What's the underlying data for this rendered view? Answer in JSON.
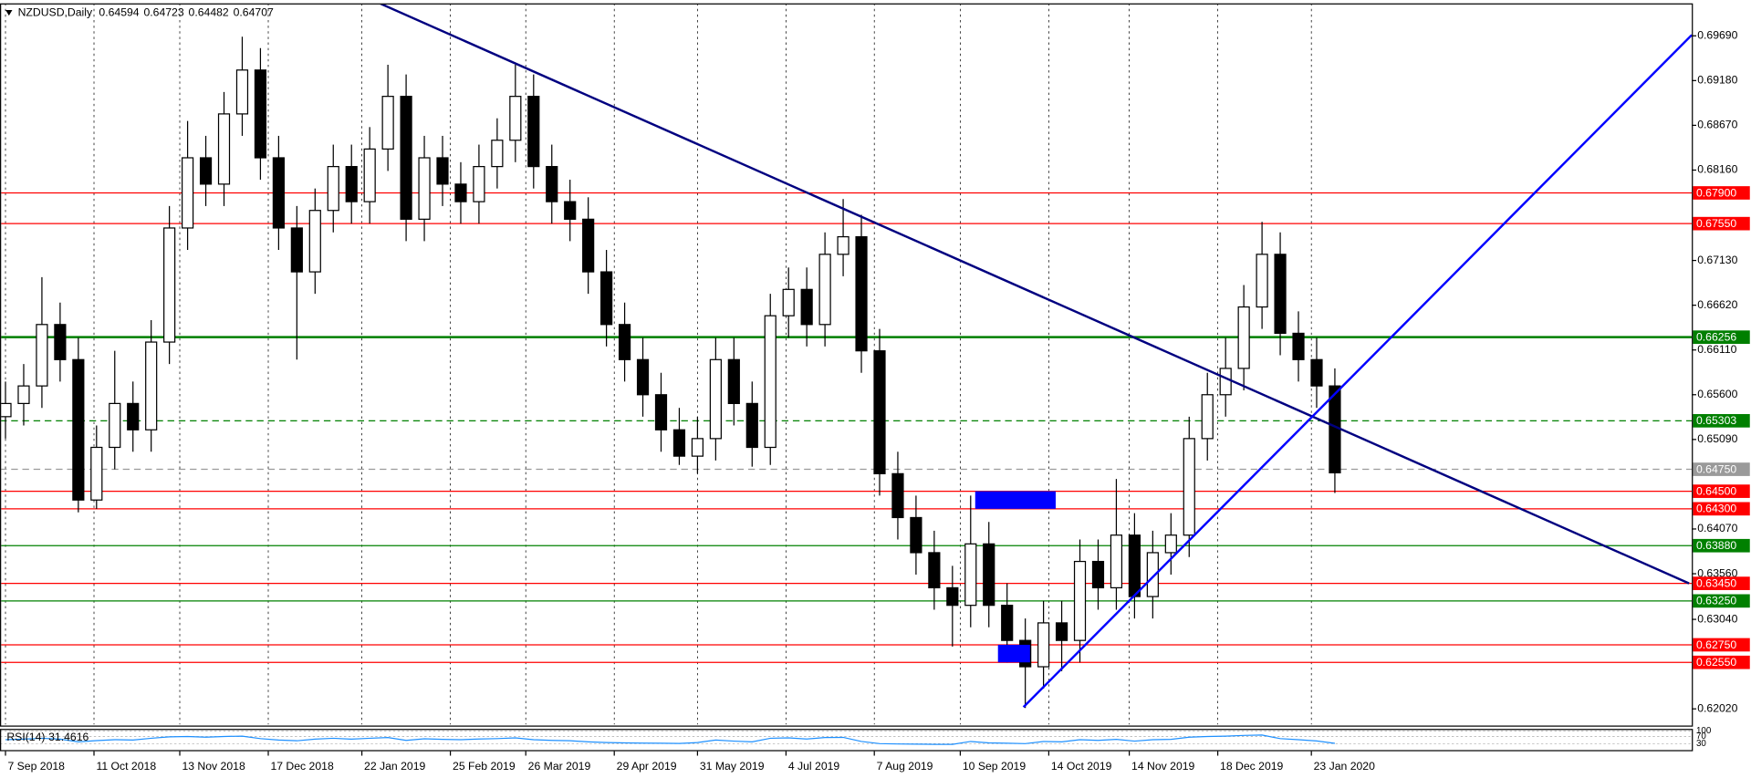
{
  "chart_data": {
    "type": "candlestick",
    "title": "NZDUSD,Daily",
    "header_values": [
      0.64594,
      0.64723,
      0.64482,
      0.64707
    ],
    "bull_color": "#ffffff",
    "bear_color": "#000000",
    "outline_color": "#000000",
    "ohlc": [
      [
        0.6535,
        0.6575,
        0.651,
        0.655
      ],
      [
        0.655,
        0.6595,
        0.6525,
        0.657
      ],
      [
        0.657,
        0.6694,
        0.6545,
        0.664
      ],
      [
        0.664,
        0.6665,
        0.6575,
        0.66
      ],
      [
        0.66,
        0.6625,
        0.6426,
        0.644
      ],
      [
        0.644,
        0.6525,
        0.643,
        0.65
      ],
      [
        0.65,
        0.661,
        0.6475,
        0.655
      ],
      [
        0.655,
        0.6575,
        0.6495,
        0.652
      ],
      [
        0.652,
        0.6645,
        0.6495,
        0.662
      ],
      [
        0.662,
        0.6775,
        0.6595,
        0.675
      ],
      [
        0.675,
        0.6872,
        0.6725,
        0.683
      ],
      [
        0.683,
        0.6855,
        0.6775,
        0.68
      ],
      [
        0.68,
        0.6905,
        0.6775,
        0.688
      ],
      [
        0.688,
        0.6968,
        0.6855,
        0.693
      ],
      [
        0.693,
        0.6955,
        0.6805,
        0.683
      ],
      [
        0.683,
        0.6855,
        0.6725,
        0.675
      ],
      [
        0.675,
        0.6775,
        0.66,
        0.67
      ],
      [
        0.67,
        0.6795,
        0.6675,
        0.677
      ],
      [
        0.677,
        0.6845,
        0.6745,
        0.682
      ],
      [
        0.682,
        0.6845,
        0.6755,
        0.678
      ],
      [
        0.678,
        0.6865,
        0.6755,
        0.684
      ],
      [
        0.684,
        0.6936,
        0.6815,
        0.69
      ],
      [
        0.69,
        0.6925,
        0.6735,
        0.676
      ],
      [
        0.676,
        0.6855,
        0.6735,
        0.683
      ],
      [
        0.683,
        0.6855,
        0.6775,
        0.68
      ],
      [
        0.68,
        0.6825,
        0.6755,
        0.678
      ],
      [
        0.678,
        0.6845,
        0.6755,
        0.682
      ],
      [
        0.682,
        0.6875,
        0.6795,
        0.685
      ],
      [
        0.685,
        0.6936,
        0.6825,
        0.69
      ],
      [
        0.69,
        0.6925,
        0.6795,
        0.682
      ],
      [
        0.682,
        0.6845,
        0.6755,
        0.678
      ],
      [
        0.678,
        0.6805,
        0.6735,
        0.676
      ],
      [
        0.676,
        0.6785,
        0.6675,
        0.67
      ],
      [
        0.67,
        0.6725,
        0.6615,
        0.664
      ],
      [
        0.664,
        0.6665,
        0.6575,
        0.66
      ],
      [
        0.66,
        0.6625,
        0.6535,
        0.656
      ],
      [
        0.656,
        0.6585,
        0.6495,
        0.652
      ],
      [
        0.652,
        0.6545,
        0.648,
        0.649
      ],
      [
        0.649,
        0.6535,
        0.647,
        0.651
      ],
      [
        0.651,
        0.6625,
        0.6485,
        0.66
      ],
      [
        0.66,
        0.6625,
        0.6525,
        0.655
      ],
      [
        0.655,
        0.6575,
        0.6478,
        0.65
      ],
      [
        0.65,
        0.6675,
        0.648,
        0.665
      ],
      [
        0.665,
        0.6705,
        0.6625,
        0.668
      ],
      [
        0.668,
        0.6705,
        0.6615,
        0.664
      ],
      [
        0.664,
        0.6745,
        0.6615,
        0.672
      ],
      [
        0.672,
        0.6783,
        0.6695,
        0.674
      ],
      [
        0.674,
        0.6765,
        0.6585,
        0.661
      ],
      [
        0.661,
        0.6635,
        0.6445,
        0.647
      ],
      [
        0.647,
        0.6495,
        0.6395,
        0.642
      ],
      [
        0.642,
        0.6445,
        0.6355,
        0.638
      ],
      [
        0.638,
        0.6405,
        0.6315,
        0.634
      ],
      [
        0.634,
        0.6365,
        0.6273,
        0.632
      ],
      [
        0.632,
        0.6445,
        0.6295,
        0.639
      ],
      [
        0.639,
        0.6415,
        0.6295,
        0.632
      ],
      [
        0.632,
        0.6345,
        0.6255,
        0.628
      ],
      [
        0.628,
        0.6305,
        0.6203,
        0.625
      ],
      [
        0.625,
        0.6325,
        0.6225,
        0.63
      ],
      [
        0.63,
        0.6325,
        0.6245,
        0.628
      ],
      [
        0.628,
        0.6395,
        0.6255,
        0.637
      ],
      [
        0.637,
        0.6395,
        0.6315,
        0.634
      ],
      [
        0.634,
        0.6464,
        0.6315,
        0.64
      ],
      [
        0.64,
        0.6425,
        0.6305,
        0.633
      ],
      [
        0.633,
        0.6405,
        0.6305,
        0.638
      ],
      [
        0.638,
        0.6425,
        0.6355,
        0.64
      ],
      [
        0.64,
        0.6535,
        0.6375,
        0.651
      ],
      [
        0.651,
        0.6585,
        0.6485,
        0.656
      ],
      [
        0.656,
        0.6625,
        0.6535,
        0.659
      ],
      [
        0.659,
        0.6685,
        0.6565,
        0.666
      ],
      [
        0.666,
        0.6757,
        0.6635,
        0.672
      ],
      [
        0.672,
        0.6745,
        0.6605,
        0.663
      ],
      [
        0.663,
        0.6655,
        0.6575,
        0.66
      ],
      [
        0.66,
        0.6625,
        0.6545,
        0.657
      ],
      [
        0.657,
        0.659,
        0.6448,
        0.6471
      ]
    ],
    "xlim": [
      -0.3,
      92.6
    ],
    "xticks": [
      {
        "value": 0,
        "label": "7 Sep 2018"
      },
      {
        "value": 4.86,
        "label": "11 Oct 2018"
      },
      {
        "value": 9.57,
        "label": "13 Nov 2018"
      },
      {
        "value": 14.43,
        "label": "17 Dec 2018"
      },
      {
        "value": 19.57,
        "label": "22 Jan 2019"
      },
      {
        "value": 24.43,
        "label": "25 Feb 2019"
      },
      {
        "value": 28.57,
        "label": "26 Mar 2019"
      },
      {
        "value": 33.43,
        "label": "29 Apr 2019"
      },
      {
        "value": 38,
        "label": "31 May 2019"
      },
      {
        "value": 42.86,
        "label": "4 Jul 2019"
      },
      {
        "value": 47.71,
        "label": "7 Aug 2019"
      },
      {
        "value": 52.43,
        "label": "10 Sep 2019"
      },
      {
        "value": 57.29,
        "label": "14 Oct 2019"
      },
      {
        "value": 61.71,
        "label": "14 Nov 2019"
      },
      {
        "value": 66.57,
        "label": "18 Dec 2019"
      },
      {
        "value": 71.71,
        "label": "23 Jan 2020"
      }
    ],
    "xgrid": true,
    "ylim": [
      0.6183,
      0.7006
    ],
    "yticks": [
      {
        "value": 0.6969,
        "label": "0.69690"
      },
      {
        "value": 0.6918,
        "label": "0.69180"
      },
      {
        "value": 0.6867,
        "label": "0.68670"
      },
      {
        "value": 0.6816,
        "label": "0.68160"
      },
      {
        "value": 0.6713,
        "label": "0.67130"
      },
      {
        "value": 0.6662,
        "label": "0.66620"
      },
      {
        "value": 0.6611,
        "label": "0.66110"
      },
      {
        "value": 0.656,
        "label": "0.65600"
      },
      {
        "value": 0.6509,
        "label": "0.65090"
      },
      {
        "value": 0.6407,
        "label": "0.64070"
      },
      {
        "value": 0.6356,
        "label": "0.63560"
      },
      {
        "value": 0.6304,
        "label": "0.63040"
      },
      {
        "value": 0.6202,
        "label": "0.62020"
      }
    ],
    "levels": [
      {
        "price": {
          "value": 0.679,
          "label": "0.67900"
        },
        "color": "#ff0000",
        "style": "solid"
      },
      {
        "price": {
          "value": 0.6755,
          "label": "0.67550"
        },
        "color": "#ff0000",
        "style": "solid"
      },
      {
        "price": 0.66256,
        "color": "#007f00",
        "style": "thick"
      },
      {
        "price": 0.65303,
        "color": "#008000",
        "style": "dashed"
      },
      {
        "price": {
          "value": 0.6475,
          "label": "0.64750"
        },
        "color": "#9a9a9a",
        "style": "dashed"
      },
      {
        "price": {
          "value": 0.645,
          "label": "0.64500"
        },
        "color": "#ff0000",
        "style": "solid"
      },
      {
        "price": {
          "value": 0.643,
          "label": "0.64300"
        },
        "color": "#ff0000",
        "style": "solid"
      },
      {
        "price": {
          "value": 0.6388,
          "label": "0.63880"
        },
        "color": "#008000",
        "style": "solid"
      },
      {
        "price": {
          "value": 0.6345,
          "label": "0.63450"
        },
        "color": "#ff0000",
        "style": "solid"
      },
      {
        "price": {
          "value": 0.6325,
          "label": "0.63250"
        },
        "color": "#008000",
        "style": "solid"
      },
      {
        "price": {
          "value": 0.6275,
          "label": "0.62750"
        },
        "color": "#ff0000",
        "style": "solid"
      },
      {
        "price": {
          "value": 0.6255,
          "label": "0.62550"
        },
        "color": "#ff0000",
        "style": "solid"
      }
    ],
    "trendlines": [
      {
        "x": [
          20.55,
          92.45
        ],
        "y": [
          0.7006,
          0.6345
        ],
        "color": "#000080"
      },
      {
        "x": [
          55.9,
          92.6
        ],
        "y": [
          0.6204,
          0.697
        ],
        "color": "#0000ff"
      }
    ],
    "zones": [
      {
        "x": [
          53.25,
          57.67
        ],
        "y": [
          0.643,
          0.645
        ],
        "color": "#0000ff"
      },
      {
        "x": [
          54.5,
          56.26
        ],
        "y": [
          0.6255,
          0.6275
        ],
        "color": "#0000ff"
      }
    ],
    "rsi": {
      "name": "RSI(14)",
      "color": "#1e90ff",
      "ylim": [
        0,
        100
      ],
      "yticks": [
        100,
        70,
        30
      ],
      "values": [
        52,
        55,
        60,
        55,
        40,
        47,
        52,
        50,
        60,
        68,
        70,
        66,
        70,
        72,
        58,
        50,
        46,
        55,
        60,
        55,
        60,
        64,
        48,
        57,
        54,
        52,
        56,
        58,
        62,
        52,
        48,
        46,
        40,
        36,
        34,
        33,
        32,
        31,
        36,
        50,
        44,
        40,
        60,
        62,
        56,
        64,
        65,
        42,
        30,
        28,
        27,
        26,
        26,
        42,
        34,
        32,
        30,
        42,
        40,
        52,
        48,
        54,
        44,
        52,
        54,
        66,
        70,
        72,
        76,
        78,
        58,
        52,
        45,
        31.4616
      ]
    }
  }
}
